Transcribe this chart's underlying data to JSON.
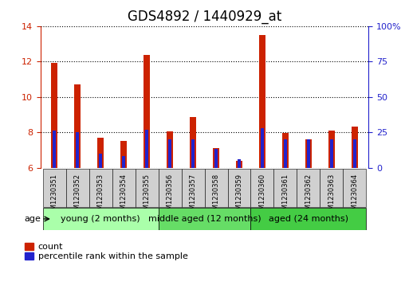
{
  "title": "GDS4892 / 1440929_at",
  "samples": [
    "GSM1230351",
    "GSM1230352",
    "GSM1230353",
    "GSM1230354",
    "GSM1230355",
    "GSM1230356",
    "GSM1230357",
    "GSM1230358",
    "GSM1230359",
    "GSM1230360",
    "GSM1230361",
    "GSM1230362",
    "GSM1230363",
    "GSM1230364"
  ],
  "count_values": [
    11.9,
    10.7,
    7.7,
    7.5,
    12.35,
    8.05,
    8.85,
    7.1,
    6.4,
    13.5,
    7.95,
    7.6,
    8.1,
    8.3
  ],
  "percentile_values": [
    26,
    25,
    10,
    8,
    27,
    20,
    20,
    13,
    6,
    28,
    20,
    20,
    20,
    20
  ],
  "ylim_left": [
    6,
    14
  ],
  "ylim_right": [
    0,
    100
  ],
  "yticks_left": [
    6,
    8,
    10,
    12,
    14
  ],
  "yticks_right": [
    0,
    25,
    50,
    75,
    100
  ],
  "groups": [
    {
      "label": "young (2 months)",
      "start": 0,
      "end": 5
    },
    {
      "label": "middle aged (12 months)",
      "start": 5,
      "end": 9
    },
    {
      "label": "aged (24 months)",
      "start": 9,
      "end": 14
    }
  ],
  "group_colors": [
    "#aaffaa",
    "#66dd66",
    "#44cc44"
  ],
  "bar_color_red": "#CC2200",
  "bar_color_blue": "#2222CC",
  "count_bar_width": 0.28,
  "percentile_bar_width": 0.12,
  "background_color": "#ffffff",
  "grid_color": "#000000",
  "tick_color_left": "#CC2200",
  "tick_color_right": "#2222CC",
  "legend_count_label": "count",
  "legend_pct_label": "percentile rank within the sample",
  "age_label": "age",
  "sample_box_color": "#d0d0d0",
  "title_fontsize": 12,
  "axis_fontsize": 8,
  "label_fontsize": 8,
  "tick_label_fontsize": 6,
  "group_label_fontsize": 8
}
